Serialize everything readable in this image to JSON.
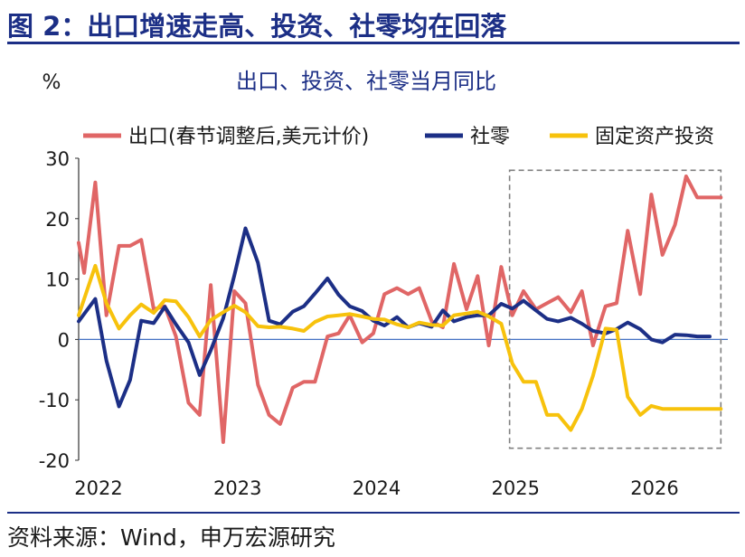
{
  "figure": {
    "title": "图 2：出口增速走高、投资、社零均在回落",
    "source": "资料来源：Wind，申万宏源研究"
  },
  "chart_data": {
    "type": "line",
    "title": "出口、投资、社零当月同比",
    "ylabel": "%",
    "xlabel": "",
    "ylim": [
      -20,
      30
    ],
    "yticks": [
      -20,
      -10,
      0,
      10,
      20,
      30
    ],
    "xlim": [
      2022.0,
      2026.67
    ],
    "xticks": [
      2022,
      2023,
      2024,
      2025,
      2026
    ],
    "xtick_labels": [
      "2022",
      "2023",
      "2024",
      "2025",
      "2026"
    ],
    "grid": false,
    "legend_position": "top",
    "highlight_box": {
      "x": [
        2025.1,
        2026.62
      ],
      "y": [
        -18,
        28
      ],
      "style": "dashed"
    },
    "series": [
      {
        "name": "出口(春节调整后,美元计价)",
        "color": "#e06666",
        "x": [
          2022.0,
          2022.04,
          2022.12,
          2022.2,
          2022.29,
          2022.37,
          2022.45,
          2022.54,
          2022.62,
          2022.7,
          2022.79,
          2022.87,
          2022.95,
          2023.04,
          2023.12,
          2023.2,
          2023.29,
          2023.37,
          2023.45,
          2023.54,
          2023.62,
          2023.7,
          2023.79,
          2023.87,
          2023.95,
          2024.04,
          2024.12,
          2024.2,
          2024.29,
          2024.37,
          2024.45,
          2024.54,
          2024.62,
          2024.7,
          2024.79,
          2024.87,
          2024.95,
          2025.04,
          2025.12,
          2025.2,
          2025.29,
          2025.37,
          2025.45,
          2025.54,
          2025.62,
          2025.7,
          2025.79,
          2025.87,
          2025.95,
          2026.04,
          2026.12,
          2026.2,
          2026.29,
          2026.37,
          2026.45,
          2026.54,
          2026.62
        ],
        "values": [
          16.0,
          11.0,
          26.0,
          4.0,
          15.5,
          15.5,
          16.5,
          5.0,
          5.5,
          0.5,
          -10.5,
          -12.5,
          9.0,
          -17.0,
          8.0,
          6.0,
          -7.5,
          -12.5,
          -14.0,
          -8.0,
          -7.0,
          -7.0,
          0.5,
          1.0,
          4.0,
          -0.5,
          1.0,
          7.5,
          8.5,
          7.5,
          8.5,
          3.0,
          2.0,
          12.5,
          5.0,
          10.5,
          -1.0,
          12.0,
          4.0,
          8.0,
          5.0,
          6.0,
          7.0,
          4.5,
          8.0,
          -1.0,
          5.5,
          6.0,
          18.0,
          7.5,
          24.0,
          14.0,
          19.0,
          27.0,
          23.5,
          23.5,
          23.5
        ]
      },
      {
        "name": "社零",
        "color": "#1c2f86",
        "x": [
          2022.0,
          2022.12,
          2022.2,
          2022.29,
          2022.37,
          2022.45,
          2022.54,
          2022.62,
          2022.7,
          2022.79,
          2022.87,
          2022.95,
          2023.04,
          2023.12,
          2023.2,
          2023.29,
          2023.37,
          2023.45,
          2023.54,
          2023.62,
          2023.7,
          2023.79,
          2023.87,
          2023.95,
          2024.04,
          2024.12,
          2024.2,
          2024.29,
          2024.37,
          2024.45,
          2024.54,
          2024.62,
          2024.7,
          2024.79,
          2024.87,
          2024.95,
          2025.04,
          2025.12,
          2025.2,
          2025.29,
          2025.37,
          2025.45,
          2025.54,
          2025.62,
          2025.7,
          2025.79,
          2025.87,
          2025.95,
          2026.04,
          2026.12,
          2026.2,
          2026.29,
          2026.37,
          2026.45,
          2026.54
        ],
        "values": [
          3.0,
          6.7,
          -3.5,
          -11.1,
          -6.7,
          3.1,
          2.7,
          5.4,
          2.5,
          -0.5,
          -5.9,
          -1.8,
          3.5,
          10.6,
          18.4,
          12.7,
          3.1,
          2.5,
          4.6,
          5.5,
          7.6,
          10.1,
          7.4,
          5.5,
          4.7,
          3.1,
          2.3,
          3.7,
          2.0,
          2.7,
          2.1,
          4.8,
          3.0,
          3.7,
          4.0,
          4.0,
          5.9,
          5.1,
          6.4,
          4.8,
          3.4,
          3.0,
          3.6,
          2.6,
          1.4,
          1.0,
          1.7,
          2.8,
          1.7,
          0.0,
          -0.5,
          0.8,
          0.7,
          0.5,
          0.5
        ]
      },
      {
        "name": "固定资产投资",
        "color": "#f7c20c",
        "x": [
          2022.0,
          2022.12,
          2022.2,
          2022.29,
          2022.37,
          2022.45,
          2022.54,
          2022.62,
          2022.7,
          2022.79,
          2022.87,
          2022.95,
          2023.04,
          2023.12,
          2023.2,
          2023.29,
          2023.37,
          2023.45,
          2023.54,
          2023.62,
          2023.7,
          2023.79,
          2023.87,
          2023.95,
          2024.04,
          2024.12,
          2024.2,
          2024.29,
          2024.37,
          2024.45,
          2024.54,
          2024.62,
          2024.7,
          2024.79,
          2024.87,
          2024.95,
          2025.04,
          2025.12,
          2025.2,
          2025.29,
          2025.37,
          2025.45,
          2025.54,
          2025.62,
          2025.7,
          2025.79,
          2025.87,
          2025.95,
          2026.04,
          2026.12,
          2026.2,
          2026.29,
          2026.37,
          2026.45,
          2026.54,
          2026.62
        ],
        "values": [
          4.0,
          12.2,
          6.0,
          1.8,
          4.0,
          5.8,
          4.4,
          6.5,
          6.3,
          3.7,
          0.5,
          3.2,
          4.5,
          5.6,
          4.5,
          2.2,
          2.0,
          2.1,
          1.8,
          1.4,
          2.9,
          3.8,
          4.0,
          4.2,
          3.8,
          3.4,
          3.3,
          2.5,
          2.0,
          2.8,
          2.4,
          2.3,
          4.0,
          4.3,
          4.6,
          3.8,
          2.6,
          -4.0,
          -7.0,
          -7.0,
          -12.5,
          -12.5,
          -15.0,
          -11.5,
          -6.0,
          1.8,
          1.6,
          -9.5,
          -12.5,
          -11.0,
          -11.5,
          -11.5,
          -11.5,
          -11.5,
          -11.5,
          -11.5
        ]
      }
    ]
  }
}
